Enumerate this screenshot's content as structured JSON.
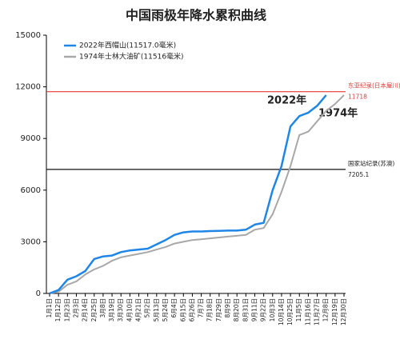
{
  "chart_data": {
    "type": "line",
    "title": "中国雨极年降水累积曲线",
    "categories": [
      "1月1日",
      "1月12日",
      "1月23日",
      "2月3日",
      "2月14日",
      "2月25日",
      "3月8日",
      "3月19日",
      "3月30日",
      "4月10日",
      "4月21日",
      "5月2日",
      "5月13日",
      "5月24日",
      "6月4日",
      "6月15日",
      "6月26日",
      "7月7日",
      "7月18日",
      "7月29日",
      "8月9日",
      "8月20日",
      "8月31日",
      "9月11日",
      "9月22日",
      "10月3日",
      "10月14日",
      "10月25日",
      "11月5日",
      "11月16日",
      "11月27日",
      "12月8日",
      "12月19日",
      "12月30日"
    ],
    "series": [
      {
        "name": "2022年西帽山(11517.0毫米)",
        "color": "#1f86e8",
        "values": [
          0,
          200,
          800,
          1000,
          1300,
          2000,
          2150,
          2200,
          2400,
          2500,
          2550,
          2600,
          2850,
          3100,
          3400,
          3550,
          3600,
          3600,
          3620,
          3630,
          3650,
          3650,
          3700,
          4000,
          4100,
          6000,
          7400,
          9700,
          10300,
          10500,
          10900,
          11517,
          null,
          null
        ]
      },
      {
        "name": "1974年士林大油矿(11516毫米)",
        "color": "#a8a8a8",
        "values": [
          0,
          100,
          500,
          700,
          1100,
          1400,
          1600,
          1900,
          2100,
          2200,
          2300,
          2400,
          2550,
          2700,
          2900,
          3000,
          3100,
          3150,
          3200,
          3250,
          3300,
          3350,
          3400,
          3700,
          3800,
          4600,
          5900,
          7400,
          9200,
          9400,
          10000,
          10600,
          11000,
          11516
        ]
      }
    ],
    "ylim": [
      0,
      15000
    ],
    "yticks": [
      0,
      3000,
      6000,
      9000,
      12000,
      15000
    ],
    "reference_lines": [
      {
        "label": "东亚纪录(日本屋川)",
        "value": 11718,
        "color": "#e53935"
      },
      {
        "label": "国家站纪录(苏澳)",
        "value": 7205.1,
        "color": "#111111"
      }
    ],
    "annotations": [
      "2022年",
      "1974年"
    ],
    "legend": "upper left"
  }
}
